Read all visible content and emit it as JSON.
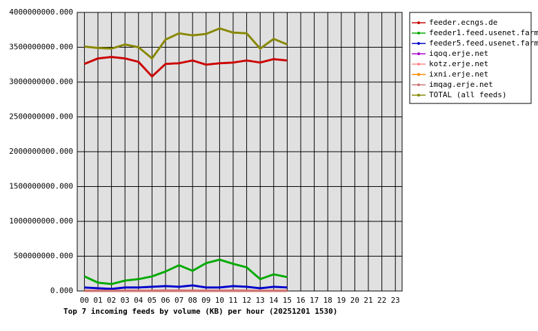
{
  "chart_data": {
    "type": "line",
    "title": "Top 7 incoming feeds by volume (KB) per hour (20251201 1530)",
    "categories": [
      "00",
      "01",
      "02",
      "03",
      "04",
      "05",
      "06",
      "07",
      "08",
      "09",
      "10",
      "11",
      "12",
      "13",
      "14",
      "15",
      "16",
      "17",
      "18",
      "19",
      "20",
      "21",
      "22",
      "23"
    ],
    "series": [
      {
        "name": "feeder.ecngs.de",
        "color": "#cc0000",
        "values": [
          3260000000,
          3340000000,
          3360000000,
          3340000000,
          3290000000,
          3080000000,
          3260000000,
          3270000000,
          3310000000,
          3250000000,
          3270000000,
          3280000000,
          3310000000,
          3280000000,
          3330000000,
          3310000000,
          null,
          null,
          null,
          null,
          null,
          null,
          null,
          null
        ]
      },
      {
        "name": "feeder1.feed.usenet.farm",
        "color": "#00aa00",
        "values": [
          210000000,
          120000000,
          100000000,
          150000000,
          170000000,
          210000000,
          280000000,
          370000000,
          290000000,
          400000000,
          450000000,
          390000000,
          340000000,
          170000000,
          240000000,
          200000000,
          null,
          null,
          null,
          null,
          null,
          null,
          null,
          null
        ]
      },
      {
        "name": "feeder5.feed.usenet.farm",
        "color": "#0000cc",
        "values": [
          50000000,
          40000000,
          30000000,
          50000000,
          50000000,
          60000000,
          70000000,
          60000000,
          80000000,
          50000000,
          50000000,
          70000000,
          60000000,
          40000000,
          60000000,
          50000000,
          null,
          null,
          null,
          null,
          null,
          null,
          null,
          null
        ]
      },
      {
        "name": "iqoq.erje.net",
        "color": "#aa00cc",
        "values": [
          5000000,
          4000000,
          4000000,
          5000000,
          5000000,
          5000000,
          6000000,
          6000000,
          5000000,
          5000000,
          5000000,
          6000000,
          5000000,
          4000000,
          5000000,
          5000000,
          null,
          null,
          null,
          null,
          null,
          null,
          null,
          null
        ]
      },
      {
        "name": "kotz.erje.net",
        "color": "#ff8888",
        "values": [
          3000000,
          3000000,
          3000000,
          3000000,
          3000000,
          3000000,
          3000000,
          3000000,
          3000000,
          3000000,
          3000000,
          3000000,
          3000000,
          3000000,
          3000000,
          3000000,
          null,
          null,
          null,
          null,
          null,
          null,
          null,
          null
        ]
      },
      {
        "name": "ixni.erje.net",
        "color": "#ff8800",
        "values": [
          2000000,
          2000000,
          2000000,
          2000000,
          2000000,
          2000000,
          2000000,
          2000000,
          2000000,
          2000000,
          2000000,
          2000000,
          2000000,
          2000000,
          2000000,
          2000000,
          null,
          null,
          null,
          null,
          null,
          null,
          null,
          null
        ]
      },
      {
        "name": "imqag.erje.net",
        "color": "#cc7777",
        "values": [
          1000000,
          1000000,
          1000000,
          1000000,
          1000000,
          1000000,
          1000000,
          1000000,
          1000000,
          1000000,
          1000000,
          1000000,
          1000000,
          1000000,
          1000000,
          1000000,
          null,
          null,
          null,
          null,
          null,
          null,
          null,
          null
        ]
      },
      {
        "name": "TOTAL (all feeds)",
        "color": "#888800",
        "values": [
          3510000000,
          3490000000,
          3480000000,
          3540000000,
          3500000000,
          3340000000,
          3610000000,
          3700000000,
          3670000000,
          3690000000,
          3770000000,
          3710000000,
          3700000000,
          3480000000,
          3620000000,
          3540000000,
          null,
          null,
          null,
          null,
          null,
          null,
          null,
          null
        ]
      }
    ],
    "ylim": [
      0,
      4000000000
    ],
    "yticks": [
      {
        "value": 0,
        "label": "0.000"
      },
      {
        "value": 500000000,
        "label": "500000000.000"
      },
      {
        "value": 1000000000,
        "label": "1000000000.000"
      },
      {
        "value": 1500000000,
        "label": "1500000000.000"
      },
      {
        "value": 2000000000,
        "label": "2000000000.000"
      },
      {
        "value": 2500000000,
        "label": "2500000000.000"
      },
      {
        "value": 3000000000,
        "label": "3000000000.000"
      },
      {
        "value": 3500000000,
        "label": "3500000000.000"
      },
      {
        "value": 4000000000,
        "label": "4000000000.000"
      }
    ],
    "grid": true
  }
}
